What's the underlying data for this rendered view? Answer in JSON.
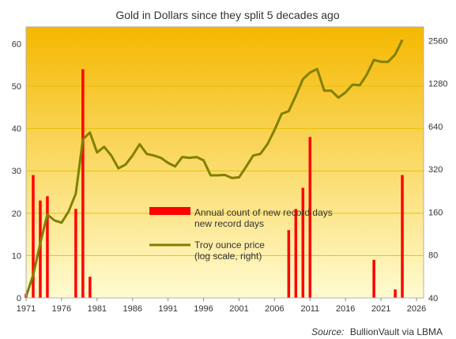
{
  "chart_data": {
    "type": "bar+line",
    "title": "Gold in Dollars since they split 5 decades ago",
    "x_ticks": [
      1971,
      1976,
      1981,
      1986,
      1991,
      1996,
      2001,
      2006,
      2011,
      2016,
      2021,
      2026
    ],
    "x_range": [
      1971,
      2027
    ],
    "left_axis": {
      "ticks": [
        0,
        10,
        20,
        30,
        40,
        50,
        60
      ],
      "ylim": [
        0,
        64
      ]
    },
    "right_axis": {
      "scale": "log2",
      "ticks": [
        40,
        80,
        160,
        320,
        640,
        1280,
        2560
      ],
      "ylim": [
        40,
        3200
      ]
    },
    "bars": {
      "name": "Annual count of new record days",
      "axis": "left",
      "x": [
        1971,
        1972,
        1973,
        1974,
        1978,
        1979,
        1980,
        2008,
        2009,
        2010,
        2011,
        2020,
        2023,
        2024
      ],
      "values": [
        1,
        29,
        23,
        24,
        21,
        54,
        5,
        16,
        21,
        26,
        38,
        9,
        2,
        29
      ]
    },
    "line": {
      "name": "Troy ounce price",
      "name_line2": "(log scale, right)",
      "axis": "right",
      "x": [
        1971,
        1972,
        1973,
        1974,
        1975,
        1976,
        1977,
        1978,
        1979,
        1980,
        1981,
        1982,
        1983,
        1984,
        1985,
        1986,
        1987,
        1988,
        1989,
        1990,
        1991,
        1992,
        1993,
        1994,
        1995,
        1996,
        1997,
        1998,
        1999,
        2000,
        2001,
        2002,
        2003,
        2004,
        2005,
        2006,
        2007,
        2008,
        2009,
        2010,
        2011,
        2012,
        2013,
        2014,
        2015,
        2016,
        2017,
        2018,
        2019,
        2020,
        2021,
        2022,
        2023,
        2024
      ],
      "values": [
        41,
        58,
        97,
        154,
        140,
        135,
        162,
        216,
        520,
        580,
        420,
        460,
        400,
        325,
        345,
        400,
        480,
        410,
        400,
        385,
        355,
        335,
        390,
        385,
        390,
        370,
        290,
        290,
        292,
        278,
        281,
        333,
        400,
        410,
        480,
        605,
        785,
        820,
        1050,
        1375,
        1530,
        1620,
        1140,
        1140,
        1020,
        1110,
        1260,
        1245,
        1480,
        1875,
        1820,
        1820,
        2050,
        2600
      ]
    },
    "source_label": "Source:",
    "source_text": "BullionVault via LBMA",
    "colors": {
      "bar": "#ff0000",
      "line": "#808000",
      "bg_top": "#f5b800",
      "bg_bottom": "#fffbd0",
      "grid": "#e6c200"
    }
  }
}
